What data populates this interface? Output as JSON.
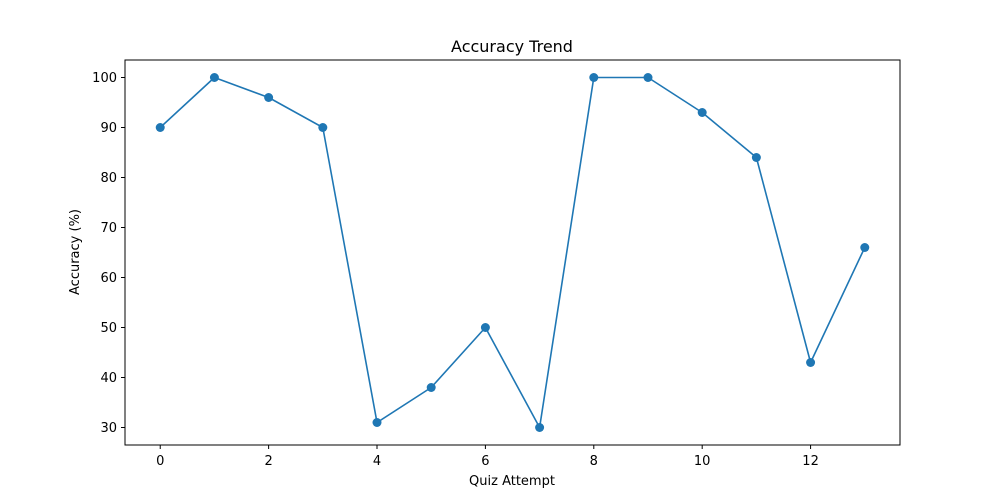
{
  "chart_data": {
    "type": "line",
    "title": "Accuracy Trend",
    "xlabel": "Quiz Attempt",
    "ylabel": "Accuracy (%)",
    "xlim": [
      -0.65,
      13.65
    ],
    "ylim": [
      26.5,
      103.5
    ],
    "xticks": [
      0,
      2,
      4,
      6,
      8,
      10,
      12
    ],
    "yticks": [
      30,
      40,
      50,
      60,
      70,
      80,
      90,
      100
    ],
    "grid": false,
    "legend": "none",
    "series": [
      {
        "color": "#1f77b4",
        "marker": "circle",
        "x": [
          0,
          1,
          2,
          3,
          4,
          5,
          6,
          7,
          8,
          9,
          10,
          11,
          12,
          13
        ],
        "y": [
          90,
          100,
          96,
          90,
          31,
          38,
          50,
          30,
          100,
          100,
          93,
          84,
          43,
          66
        ]
      }
    ]
  }
}
